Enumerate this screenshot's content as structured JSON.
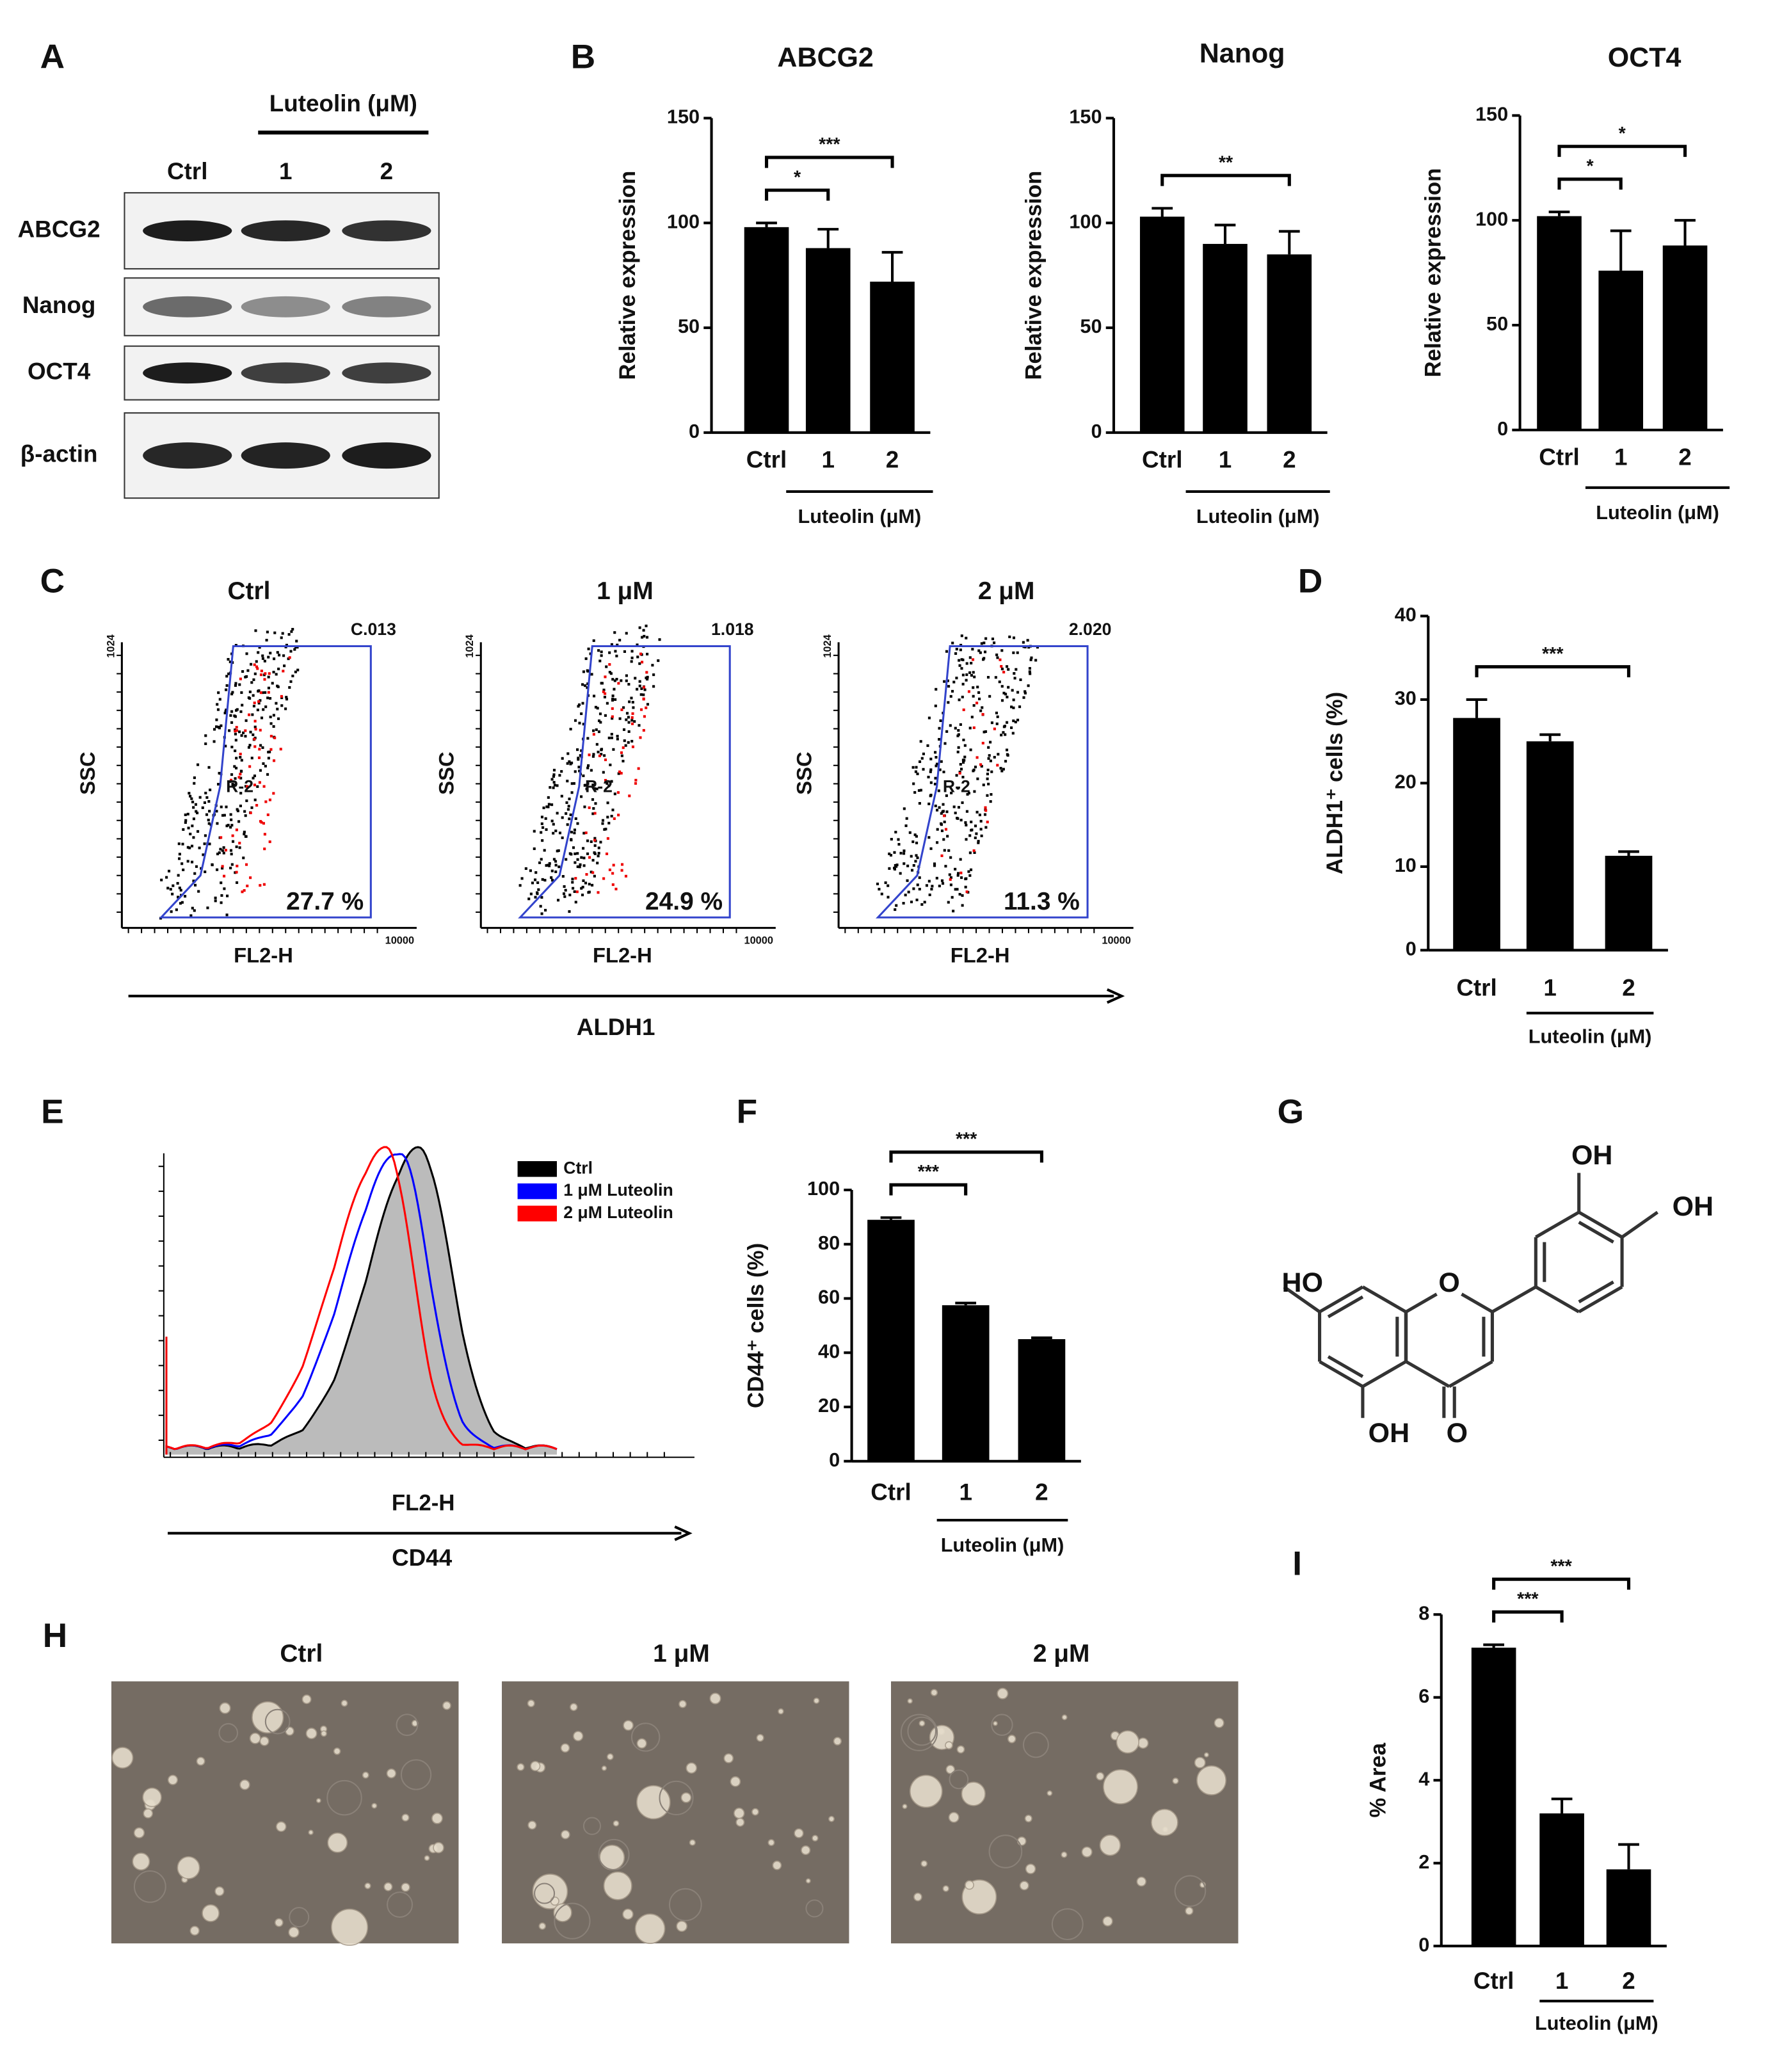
{
  "panel_labels": [
    "A",
    "B",
    "C",
    "D",
    "E",
    "F",
    "G",
    "H",
    "I"
  ],
  "blot": {
    "treatment_label": "Luteolin (μM)",
    "lanes": [
      "Ctrl",
      "1",
      "2"
    ],
    "rows": [
      "ABCG2",
      "Nanog",
      "OCT4",
      "β-actin"
    ]
  },
  "chart_data": [
    {
      "type": "bar",
      "title": "ABCG2",
      "y_label": "Relative expression",
      "x_label": "Luteolin (μM)",
      "categories": [
        "Ctrl",
        "1",
        "2"
      ],
      "values": [
        98,
        88,
        72
      ],
      "errors": [
        2,
        9,
        14
      ],
      "color": "#000000",
      "ylim": [
        0,
        150
      ],
      "yticks": [
        0,
        50,
        100,
        150
      ],
      "significance": [
        {
          "between": [
            0,
            1
          ],
          "label": "*"
        },
        {
          "between": [
            0,
            2
          ],
          "label": "***"
        }
      ]
    },
    {
      "type": "bar",
      "title": "Nanog",
      "y_label": "Relative expression",
      "x_label": "Luteolin (μM)",
      "categories": [
        "Ctrl",
        "1",
        "2"
      ],
      "values": [
        103,
        90,
        85
      ],
      "errors": [
        4,
        9,
        11
      ],
      "color": "#000000",
      "ylim": [
        0,
        150
      ],
      "yticks": [
        0,
        50,
        100,
        150
      ],
      "significance": [
        {
          "between": [
            0,
            2
          ],
          "label": "**"
        }
      ]
    },
    {
      "type": "bar",
      "title": "OCT4",
      "y_label": "Relative expression",
      "x_label": "Luteolin (μM)",
      "categories": [
        "Ctrl",
        "1",
        "2"
      ],
      "values": [
        102,
        76,
        88
      ],
      "errors": [
        2,
        19,
        12
      ],
      "color": "#000000",
      "ylim": [
        0,
        150
      ],
      "yticks": [
        0,
        50,
        100,
        150
      ],
      "significance": [
        {
          "between": [
            0,
            1
          ],
          "label": "*"
        },
        {
          "between": [
            0,
            2
          ],
          "label": "*"
        }
      ]
    },
    {
      "type": "bar",
      "y_label": "ALDH1⁺ cells (%)",
      "x_label": "Luteolin (μM)",
      "categories": [
        "Ctrl",
        "1",
        "2"
      ],
      "values": [
        27.8,
        25,
        11.3
      ],
      "errors": [
        2.2,
        0.8,
        0.5
      ],
      "color": "#000000",
      "ylim": [
        0,
        40
      ],
      "yticks": [
        0,
        10,
        20,
        30,
        40
      ],
      "significance": [
        {
          "between": [
            0,
            2
          ],
          "label": "***"
        }
      ]
    },
    {
      "type": "bar",
      "y_label": "CD44⁺ cells (%)",
      "x_label": "Luteolin (μM)",
      "categories": [
        "Ctrl",
        "1",
        "2"
      ],
      "values": [
        89,
        57.5,
        45
      ],
      "errors": [
        0.8,
        0.8,
        0.5
      ],
      "color": "#000000",
      "ylim": [
        0,
        100
      ],
      "yticks": [
        0,
        20,
        40,
        60,
        80,
        100
      ],
      "significance": [
        {
          "between": [
            0,
            1
          ],
          "label": "***"
        },
        {
          "between": [
            0,
            2
          ],
          "label": "***"
        }
      ]
    },
    {
      "type": "bar",
      "y_label": "% Area",
      "x_label": "Luteolin (μM)",
      "categories": [
        "Ctrl",
        "1",
        "2"
      ],
      "values": [
        7.2,
        3.2,
        1.85
      ],
      "errors": [
        0.07,
        0.35,
        0.6
      ],
      "color": "#000000",
      "ylim": [
        0,
        8
      ],
      "yticks": [
        0,
        2,
        4,
        6,
        8
      ],
      "significance": [
        {
          "between": [
            0,
            1
          ],
          "label": "***"
        },
        {
          "between": [
            0,
            2
          ],
          "label": "***"
        }
      ]
    }
  ],
  "flow": {
    "panels": [
      {
        "title": "Ctrl",
        "gate_value": "C.013",
        "percent": "27.7 %"
      },
      {
        "title": "1 μM",
        "gate_value": "1.018",
        "percent": "24.9 %"
      },
      {
        "title": "2 μM",
        "gate_value": "2.020",
        "percent": "11.3 %"
      }
    ],
    "y_label": "SSC",
    "x_label": "FL2-H",
    "gate_label": "R-2",
    "y_max_label": "1024",
    "x_max_label": "10000",
    "marker": "ALDH1"
  },
  "histogram": {
    "legend": [
      {
        "name": "Ctrl",
        "color": "#000000"
      },
      {
        "name": "1 μM Luteolin",
        "color": "#0000ff"
      },
      {
        "name": "2 μM Luteolin",
        "color": "#ff0000"
      }
    ],
    "x_label": "FL2-H",
    "marker": "CD44"
  },
  "structure": {
    "labels": [
      "OH",
      "OH",
      "HO",
      "O",
      "OH",
      "O"
    ]
  },
  "images": {
    "titles": [
      "Ctrl",
      "1 μM",
      "2 μM"
    ]
  }
}
